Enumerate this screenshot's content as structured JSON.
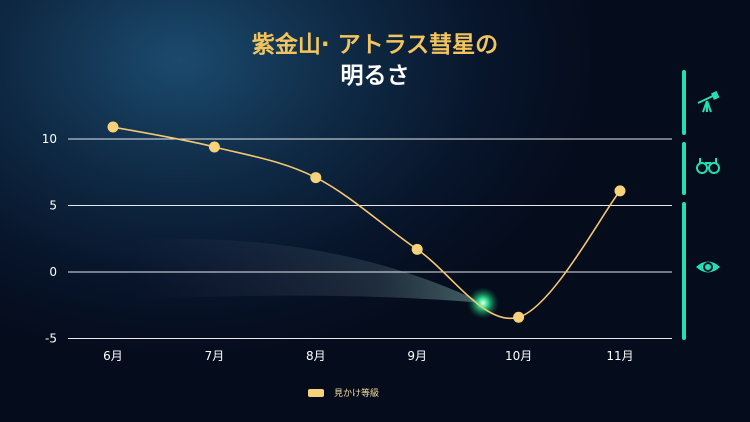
{
  "title": {
    "line1": "紫金山· アトラス彗星の",
    "line2": "明るさ"
  },
  "colors": {
    "line": "#f2c870",
    "marker": "#f7d27a",
    "grid": "#e8e8e8",
    "accent": "#23e0b4",
    "title": "#f2c45c"
  },
  "side_icons": [
    "telescope-icon",
    "binoculars-icon",
    "eye-icon"
  ],
  "chart_data": {
    "type": "line",
    "categories": [
      "6月",
      "7月",
      "8月",
      "9月",
      "10月",
      "11月"
    ],
    "series": [
      {
        "name": "見かけ等級",
        "values": [
          10.9,
          9.4,
          7.1,
          1.7,
          -3.4,
          6.1
        ]
      }
    ],
    "yticks": [
      10,
      5,
      0,
      -5
    ],
    "ylim": [
      -5,
      11
    ],
    "grid": true,
    "smooth": true,
    "legend": "bottom"
  }
}
